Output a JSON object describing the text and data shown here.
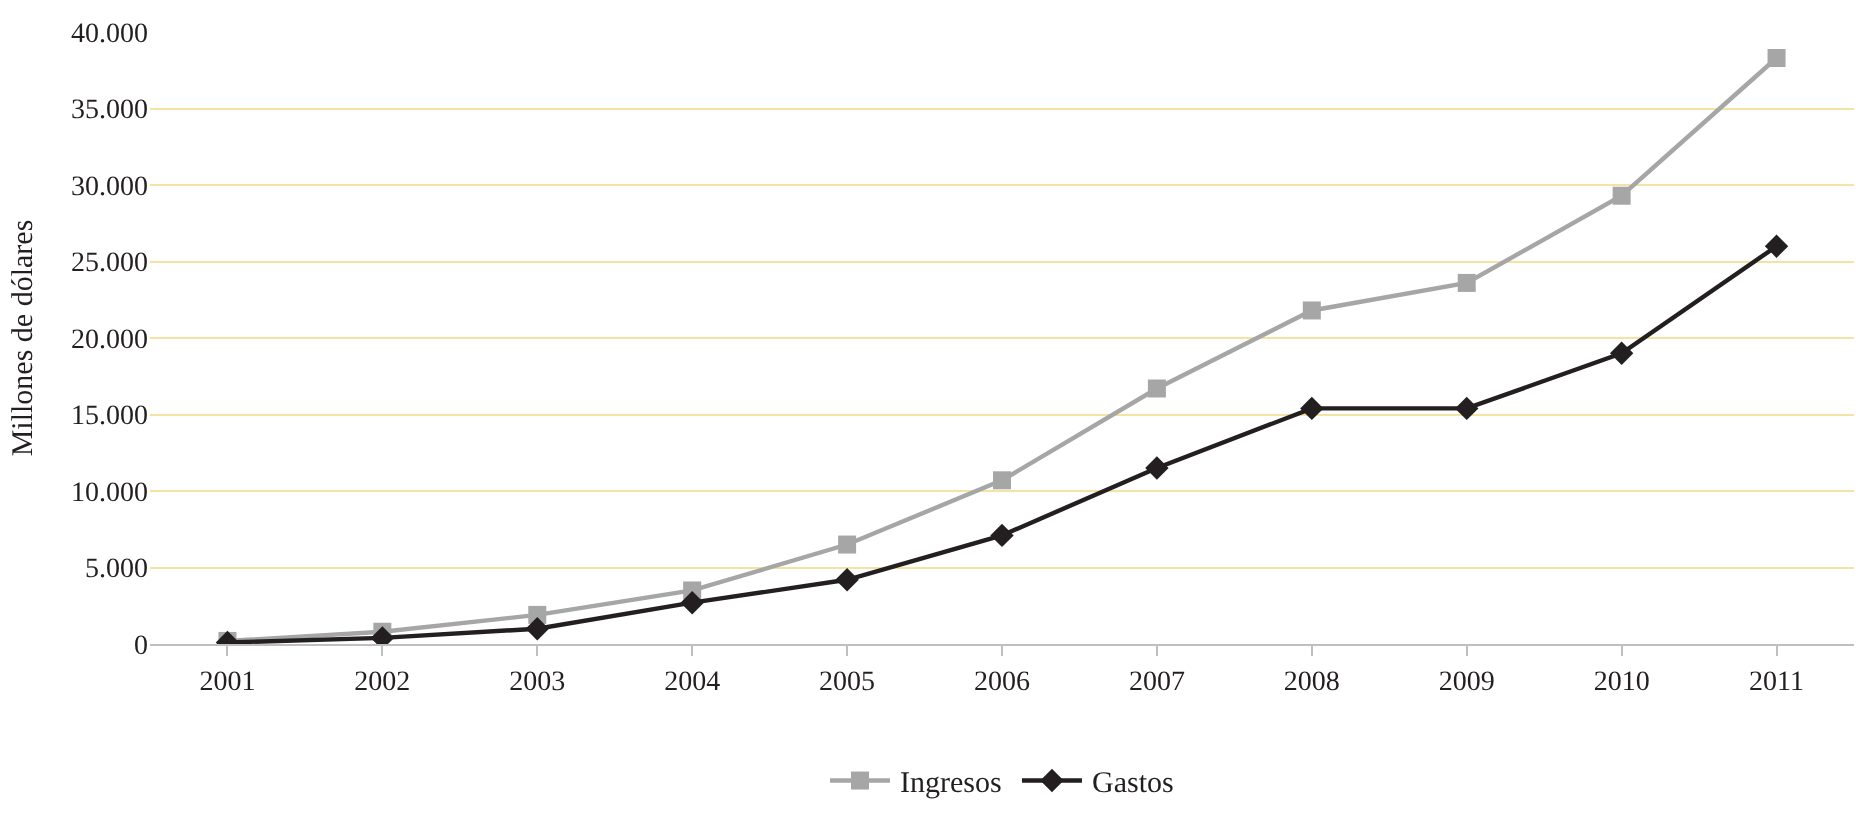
{
  "chart_data": {
    "type": "line",
    "ylabel": "Millones de dólares",
    "categories": [
      "2001",
      "2002",
      "2003",
      "2004",
      "2005",
      "2006",
      "2007",
      "2008",
      "2009",
      "2010",
      "2011"
    ],
    "series": [
      {
        "name": "Ingresos",
        "color": "#a6a6a6",
        "marker": "square",
        "values": [
          200,
          800,
          1900,
          3500,
          6500,
          10700,
          16700,
          21800,
          23600,
          29300,
          38300
        ]
      },
      {
        "name": "Gastos",
        "color": "#231f20",
        "marker": "diamond",
        "values": [
          100,
          400,
          1000,
          2700,
          4200,
          7100,
          11500,
          15400,
          15400,
          19000,
          26000
        ]
      }
    ],
    "ylim": [
      0,
      40000
    ],
    "yticks": [
      0,
      {
        "value": 5000,
        "label": "5.000"
      },
      {
        "value": 10000,
        "label": "10.000"
      },
      {
        "value": 15000,
        "label": "15.000"
      },
      {
        "value": 20000,
        "label": "20.000"
      },
      {
        "value": 25000,
        "label": "25.000"
      },
      {
        "value": 30000,
        "label": "30.000"
      },
      {
        "value": 35000,
        "label": "35.000"
      },
      {
        "value": 40000,
        "label": "40.000"
      }
    ],
    "grid": "y",
    "legend": "bottom",
    "line_style": "solid"
  }
}
